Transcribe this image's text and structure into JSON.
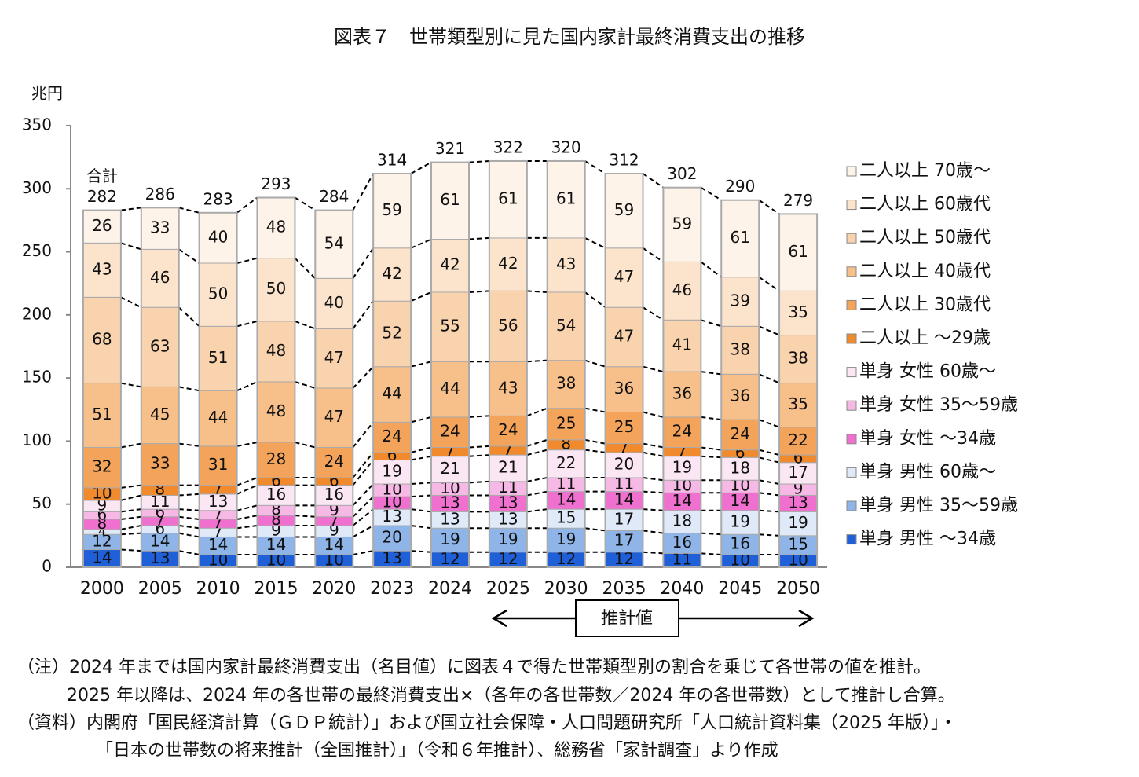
{
  "chart_data": {
    "type": "stacked_bar",
    "title": "図表７　世帯類型別に見た国内家計最終消費支出の推移",
    "y_label": "兆円",
    "categories": [
      "2000",
      "2005",
      "2010",
      "2015",
      "2020",
      "2023",
      "2024",
      "2025",
      "2030",
      "2035",
      "2040",
      "2045",
      "2050"
    ],
    "series": [
      {
        "name": "単身 男性 ～34歳",
        "color": "#1f5fd8",
        "values": [
          14,
          13,
          10,
          10,
          10,
          13,
          12,
          12,
          12,
          12,
          11,
          10,
          10
        ]
      },
      {
        "name": "単身 男性 35～59歳",
        "color": "#8fb4e8",
        "values": [
          12,
          14,
          14,
          14,
          14,
          20,
          19,
          19,
          19,
          17,
          16,
          16,
          15
        ]
      },
      {
        "name": "単身 男性 60歳～",
        "color": "#dfe9f8",
        "values": [
          4,
          6,
          7,
          9,
          9,
          13,
          13,
          13,
          15,
          17,
          18,
          19,
          19
        ]
      },
      {
        "name": "単身 女性 ～34歳",
        "color": "#f070d0",
        "values": [
          8,
          7,
          7,
          8,
          7,
          10,
          13,
          13,
          14,
          14,
          14,
          14,
          13
        ]
      },
      {
        "name": "単身 女性 35～59歳",
        "color": "#f6b8e4",
        "values": [
          6,
          6,
          7,
          8,
          9,
          10,
          10,
          11,
          11,
          11,
          10,
          10,
          9
        ]
      },
      {
        "name": "単身 女性 60歳～",
        "color": "#fbe6f4",
        "values": [
          9,
          11,
          13,
          16,
          16,
          19,
          21,
          21,
          22,
          20,
          19,
          18,
          17
        ]
      },
      {
        "name": "二人以上 ～29歳",
        "color": "#f08a2c",
        "values": [
          10,
          8,
          7,
          6,
          6,
          6,
          7,
          7,
          8,
          7,
          7,
          6,
          6
        ]
      },
      {
        "name": "二人以上 30歳代",
        "color": "#f4a45a",
        "values": [
          32,
          33,
          31,
          28,
          24,
          24,
          24,
          24,
          25,
          25,
          24,
          24,
          22
        ]
      },
      {
        "name": "二人以上 40歳代",
        "color": "#f7c08a",
        "values": [
          51,
          45,
          44,
          48,
          47,
          44,
          44,
          43,
          38,
          36,
          36,
          36,
          35
        ]
      },
      {
        "name": "二人以上 50歳代",
        "color": "#f9d3ad",
        "values": [
          68,
          63,
          51,
          48,
          47,
          52,
          55,
          56,
          54,
          47,
          41,
          38,
          38
        ]
      },
      {
        "name": "二人以上 60歳代",
        "color": "#fbe3cc",
        "values": [
          43,
          46,
          50,
          50,
          40,
          42,
          42,
          42,
          43,
          47,
          46,
          39,
          35
        ]
      },
      {
        "name": "二人以上 70歳～",
        "color": "#fdf3e8",
        "values": [
          26,
          33,
          40,
          48,
          54,
          59,
          61,
          61,
          61,
          59,
          59,
          61,
          61
        ]
      }
    ],
    "totals": {
      "name": "合計",
      "values": [
        282,
        286,
        283,
        293,
        284,
        314,
        321,
        322,
        320,
        312,
        302,
        290,
        279
      ]
    },
    "estimate_label": "推計値",
    "ylim": [
      0,
      350
    ],
    "yticks": [
      0,
      50,
      100,
      150,
      200,
      250,
      300,
      350
    ],
    "legend": "right",
    "notes": [
      "（注）2024 年までは国内家計最終消費支出（名目値）に図表４で得た世帯類型別の割合を乗じて各世帯の値を推計。",
      "2025 年以降は、2024 年の各世帯の最終消費支出×（各年の各世帯数／2024 年の各世帯数）として推計し合算。",
      "（資料）内閣府「国民経済計算（ＧＤＰ統計）」および国立社会保障・人口問題研究所「人口統計資料集（2025 年版）」・",
      "「日本の世帯数の将来推計（全国推計）」（令和６年推計）、総務省「家計調査」より作成"
    ]
  }
}
